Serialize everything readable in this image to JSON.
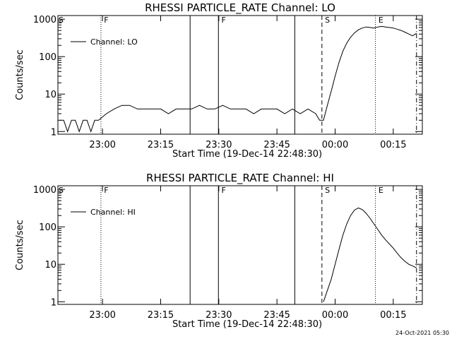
{
  "chart_data": [
    {
      "type": "line",
      "title": "RHESSI PARTICLE_RATE Channel: LO",
      "xlabel": "Start Time (19-Dec-14 22:48:30)",
      "ylabel": "Counts/sec",
      "log_y": true,
      "legend": "upper left",
      "xlim": [
        1368.5,
        1462.5
      ],
      "ylim": [
        0.85,
        1250
      ],
      "xticks": [
        {
          "value": 1380,
          "label": "23:00"
        },
        {
          "value": 1395,
          "label": "23:15"
        },
        {
          "value": 1410,
          "label": "23:30"
        },
        {
          "value": 1425,
          "label": "23:45"
        },
        {
          "value": 1440,
          "label": "00:00"
        },
        {
          "value": 1455,
          "label": "00:15"
        }
      ],
      "yticks": [
        1,
        10,
        100,
        1000
      ],
      "x": [
        1369,
        1370,
        1371,
        1372,
        1373,
        1374,
        1375,
        1376,
        1377,
        1378,
        1379,
        1381,
        1383,
        1385,
        1387,
        1389,
        1391,
        1393,
        1395,
        1397,
        1399,
        1401,
        1403,
        1405,
        1407,
        1409,
        1411,
        1413,
        1415,
        1417,
        1419,
        1421,
        1423,
        1425,
        1427,
        1429,
        1431,
        1433,
        1435,
        1436,
        1437,
        1438,
        1439,
        1440,
        1441,
        1442,
        1443,
        1444,
        1445,
        1446,
        1447,
        1448,
        1449,
        1450,
        1451,
        1452,
        1453,
        1454,
        1455,
        1456,
        1457,
        1458,
        1459,
        1460,
        1461
      ],
      "series": [
        {
          "name": "Channel: LO",
          "color": "#000000",
          "values": [
            2,
            2,
            1,
            2,
            2,
            1,
            2,
            2,
            1,
            2,
            2,
            3,
            4,
            5,
            5,
            4,
            4,
            4,
            4,
            3,
            4,
            4,
            4,
            5,
            4,
            4,
            5,
            4,
            4,
            4,
            3,
            4,
            4,
            4,
            3,
            4,
            3,
            4,
            3,
            2,
            2,
            5,
            12,
            30,
            70,
            140,
            230,
            330,
            430,
            520,
            580,
            620,
            600,
            580,
            620,
            640,
            620,
            600,
            580,
            540,
            500,
            450,
            400,
            360,
            420
          ]
        }
      ],
      "vlines": [
        {
          "x": 1379.6,
          "style": "dotted"
        },
        {
          "x": 1402.6,
          "style": "solid"
        },
        {
          "x": 1409.9,
          "style": "solid"
        },
        {
          "x": 1429.6,
          "style": "solid"
        },
        {
          "x": 1436.6,
          "style": "dashed"
        },
        {
          "x": 1450.4,
          "style": "dotted"
        },
        {
          "x": 1461,
          "style": "dashdot"
        }
      ],
      "annotations": [
        {
          "text": "S",
          "x": 1368.5
        },
        {
          "text": "F",
          "x": 1380.2
        },
        {
          "text": "F",
          "x": 1410.5
        },
        {
          "text": "S",
          "x": 1437.2
        },
        {
          "text": "E",
          "x": 1451
        }
      ]
    },
    {
      "type": "line",
      "title": "RHESSI PARTICLE_RATE Channel: HI",
      "xlabel": "Start Time (19-Dec-14 22:48:30)",
      "ylabel": "Counts/sec",
      "log_y": true,
      "legend": "upper left",
      "xlim": [
        1368.5,
        1462.5
      ],
      "ylim": [
        0.85,
        1250
      ],
      "xticks": [
        {
          "value": 1380,
          "label": "23:00"
        },
        {
          "value": 1395,
          "label": "23:15"
        },
        {
          "value": 1410,
          "label": "23:30"
        },
        {
          "value": 1425,
          "label": "23:45"
        },
        {
          "value": 1440,
          "label": "00:00"
        },
        {
          "value": 1455,
          "label": "00:15"
        }
      ],
      "yticks": [
        1,
        10,
        100,
        1000
      ],
      "x": [
        1437,
        1438,
        1439,
        1440,
        1441,
        1442,
        1443,
        1444,
        1445,
        1446,
        1447,
        1448,
        1449,
        1450,
        1451,
        1452,
        1453,
        1454,
        1455,
        1456,
        1457,
        1458,
        1459,
        1460,
        1461
      ],
      "series": [
        {
          "name": "Channel: HI",
          "color": "#000000",
          "values": [
            1,
            2,
            4,
            10,
            25,
            60,
            120,
            200,
            280,
            320,
            290,
            230,
            170,
            120,
            85,
            60,
            45,
            35,
            27,
            20,
            15,
            12,
            10,
            9,
            8
          ]
        }
      ],
      "vlines": [
        {
          "x": 1379.6,
          "style": "dotted"
        },
        {
          "x": 1402.6,
          "style": "solid"
        },
        {
          "x": 1409.9,
          "style": "solid"
        },
        {
          "x": 1429.6,
          "style": "solid"
        },
        {
          "x": 1436.6,
          "style": "dashed"
        },
        {
          "x": 1450.4,
          "style": "dotted"
        },
        {
          "x": 1461,
          "style": "dashdot"
        }
      ],
      "annotations": [
        {
          "text": "S",
          "x": 1368.5
        },
        {
          "text": "F",
          "x": 1380.2
        },
        {
          "text": "F",
          "x": 1410.5
        },
        {
          "text": "S",
          "x": 1437.2
        },
        {
          "text": "E",
          "x": 1451
        }
      ]
    }
  ],
  "footer": "24-Oct-2021 05:30"
}
